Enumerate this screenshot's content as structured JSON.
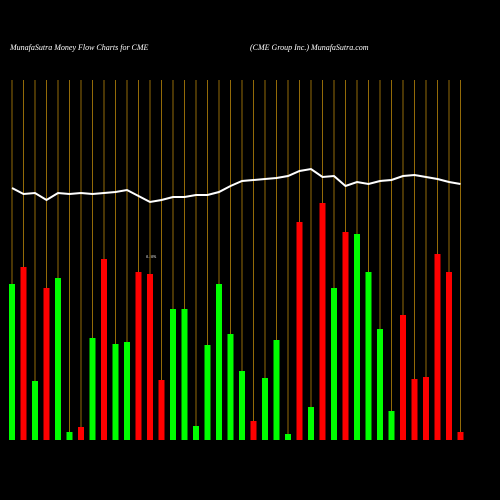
{
  "chart_data": {
    "type": "bar",
    "title": "MunafaSutra  Money Flow  Charts for CME",
    "subtitle": "(CME Group Inc.) MunafaSutra.com",
    "annotation": "0.10%",
    "categories": [
      null,
      null,
      null,
      null,
      null,
      null,
      null,
      null,
      null,
      null,
      null,
      null,
      null,
      null,
      null,
      null,
      null,
      null,
      null,
      null,
      null,
      null,
      null,
      null,
      null,
      null,
      null,
      null,
      null,
      null,
      null,
      null,
      null,
      null,
      null,
      null,
      null,
      null,
      null,
      null
    ],
    "series": [
      {
        "type": "bar",
        "values": [
          156,
          173,
          59,
          152,
          162,
          8,
          13,
          102,
          181,
          96,
          98,
          168,
          166,
          60,
          131,
          131,
          14,
          95,
          156,
          106,
          69,
          19,
          62,
          100,
          6,
          218,
          33,
          237,
          152,
          208,
          206,
          168,
          111,
          29,
          125,
          61,
          63,
          186,
          168,
          8
        ],
        "colors": [
          "#00ff00",
          "#ff0000",
          "#00ff00",
          "#ff0000",
          "#00ff00",
          "#00ff00",
          "#ff0000",
          "#00ff00",
          "#ff0000",
          "#00ff00",
          "#00ff00",
          "#ff0000",
          "#ff0000",
          "#ff0000",
          "#00ff00",
          "#00ff00",
          "#00ff00",
          "#00ff00",
          "#00ff00",
          "#00ff00",
          "#00ff00",
          "#ff0000",
          "#00ff00",
          "#00ff00",
          "#00ff00",
          "#ff0000",
          "#00ff00",
          "#ff0000",
          "#00ff00",
          "#ff0000",
          "#00ff00",
          "#00ff00",
          "#00ff00",
          "#00ff00",
          "#ff0000",
          "#ff0000",
          "#ff0000",
          "#ff0000",
          "#ff0000",
          "#ff0000"
        ]
      },
      {
        "type": "line",
        "color": "#ffffff",
        "values": [
          252,
          246,
          247,
          240,
          247,
          246,
          247,
          246,
          247,
          248,
          250,
          244,
          238,
          240,
          243,
          243,
          245,
          245,
          248,
          254,
          259,
          260,
          261,
          262,
          264,
          269,
          271,
          263,
          264,
          254,
          258,
          256,
          259,
          260,
          264,
          265,
          263,
          261,
          258,
          256
        ]
      }
    ],
    "ylim": [
      0,
      360
    ],
    "grid_color": "#b8860b"
  }
}
